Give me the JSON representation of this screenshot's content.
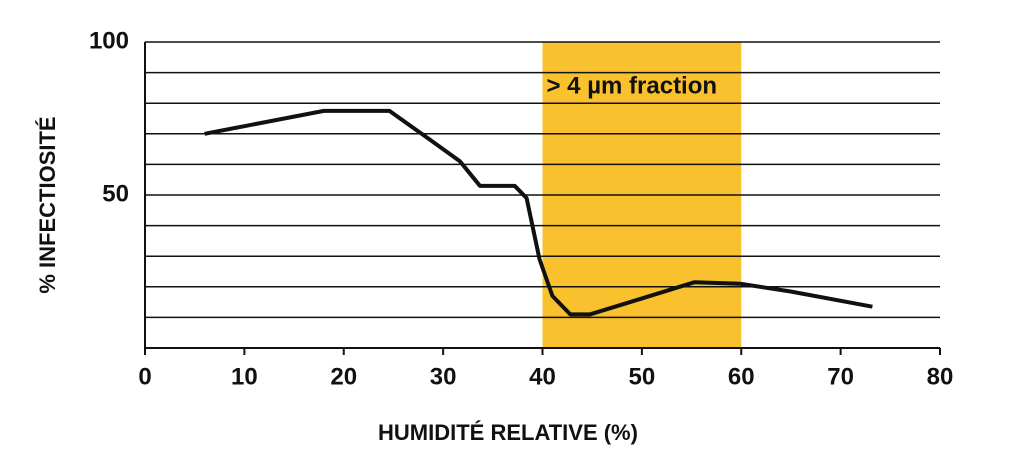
{
  "chart_data": {
    "type": "line",
    "x_label": "HUMIDITÉ RELATIVE (%)",
    "y_label": "% INFECTIOSITÉ",
    "annotation": "> 4 µm fraction",
    "band": {
      "from": 40,
      "to": 60,
      "color": "#f9c12e"
    },
    "x": [
      6,
      18,
      24.6,
      28.7,
      31.7,
      33.7,
      37.2,
      38.4,
      39.7,
      41,
      42.8,
      44.8,
      49.8,
      55.3,
      59.9,
      64.9,
      73.2
    ],
    "series": [
      {
        "color": "#111111",
        "values": [
          70,
          77.5,
          77.5,
          68,
          61,
          53,
          53,
          49,
          29,
          17,
          11,
          11,
          16,
          21.5,
          21,
          18.5,
          13.5
        ]
      }
    ],
    "xlim": [
      0,
      80
    ],
    "xticks": [
      0,
      10,
      20,
      30,
      40,
      50,
      60,
      70,
      80
    ],
    "ylim": [
      0,
      100
    ],
    "yticks": [
      50,
      100
    ],
    "ygrid": [
      10,
      20,
      30,
      40,
      50,
      60,
      70,
      80,
      90,
      100
    ]
  }
}
